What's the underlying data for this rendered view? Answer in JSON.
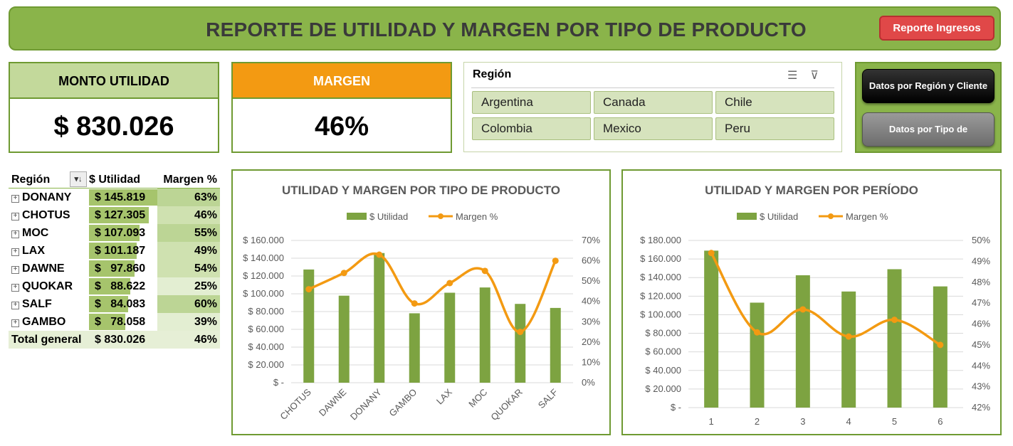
{
  "header": {
    "title": "REPORTE DE UTILIDAD Y MARGEN POR TIPO DE PRODUCTO",
    "button_label": "Reporte Ingresos"
  },
  "kpis": {
    "utilidad": {
      "label": "MONTO UTILIDAD",
      "value": "$ 830.026"
    },
    "margen": {
      "label": "MARGEN",
      "value": "46%"
    }
  },
  "slicer": {
    "title": "Región",
    "items": [
      "Argentina",
      "Canada",
      "Chile",
      "Colombia",
      "Mexico",
      "Peru"
    ]
  },
  "nav": {
    "btn1": "Datos por Región y Cliente",
    "btn2": "Datos por Tipo de"
  },
  "pivot": {
    "headers": [
      "Región",
      "$ Utilidad",
      "Margen %"
    ],
    "rows": [
      {
        "label": "DONANY",
        "utilidad": "$ 145.819",
        "margen": "63%",
        "util_value": 145819,
        "margen_value": 63
      },
      {
        "label": "CHOTUS",
        "utilidad": "$ 127.305",
        "margen": "46%",
        "util_value": 127305,
        "margen_value": 46
      },
      {
        "label": "MOC",
        "utilidad": "$ 107.093",
        "margen": "55%",
        "util_value": 107093,
        "margen_value": 55
      },
      {
        "label": "LAX",
        "utilidad": "$ 101.187",
        "margen": "49%",
        "util_value": 101187,
        "margen_value": 49
      },
      {
        "label": "DAWNE",
        "utilidad": "$   97.860",
        "margen": "54%",
        "util_value": 97860,
        "margen_value": 54
      },
      {
        "label": "QUOKAR",
        "utilidad": "$   88.622",
        "margen": "25%",
        "util_value": 88622,
        "margen_value": 25
      },
      {
        "label": "SALF",
        "utilidad": "$   84.083",
        "margen": "60%",
        "util_value": 84083,
        "margen_value": 60
      },
      {
        "label": "GAMBO",
        "utilidad": "$   78.058",
        "margen": "39%",
        "util_value": 78058,
        "margen_value": 39
      }
    ],
    "total": {
      "label": "Total general",
      "utilidad": "$ 830.026",
      "margen": "46%"
    }
  },
  "colors": {
    "bar": "#7da341",
    "line": "#f39a12",
    "accent_green": "#8ab44a",
    "red_button": "#e04848"
  },
  "chart_data": [
    {
      "type": "bar",
      "title": "UTILIDAD Y MARGEN POR TIPO DE PRODUCTO",
      "legend": [
        "$ Utilidad",
        "Margen %"
      ],
      "legend_position": "top",
      "categories": [
        "CHOTUS",
        "DAWNE",
        "DONANY",
        "GAMBO",
        "LAX",
        "MOC",
        "QUOKAR",
        "SALF"
      ],
      "series": [
        {
          "name": "$ Utilidad",
          "type": "bar",
          "axis": "left",
          "values": [
            127305,
            97860,
            145819,
            78058,
            101187,
            107093,
            88622,
            84083
          ]
        },
        {
          "name": "Margen %",
          "type": "line",
          "axis": "right",
          "values": [
            46,
            54,
            63,
            39,
            49,
            55,
            25,
            60
          ]
        }
      ],
      "ylim": [
        0,
        160000
      ],
      "yticks": [
        "$ -",
        "$ 20.000",
        "$ 40.000",
        "$ 60.000",
        "$ 80.000",
        "$ 100.000",
        "$ 120.000",
        "$ 140.000",
        "$ 160.000"
      ],
      "y2lim": [
        0,
        70
      ],
      "y2ticks": [
        "0%",
        "10%",
        "20%",
        "30%",
        "40%",
        "50%",
        "60%",
        "70%"
      ],
      "grid": true
    },
    {
      "type": "bar",
      "title": "UTILIDAD Y MARGEN POR PERÍODO",
      "legend": [
        "$ Utilidad",
        "Margen %"
      ],
      "legend_position": "top",
      "categories": [
        "1",
        "2",
        "3",
        "4",
        "5",
        "6"
      ],
      "series": [
        {
          "name": "$ Utilidad",
          "type": "bar",
          "axis": "left",
          "values": [
            169000,
            113000,
            142500,
            125000,
            149000,
            130500
          ]
        },
        {
          "name": "Margen %",
          "type": "line",
          "axis": "right",
          "values": [
            49.4,
            45.6,
            46.7,
            45.4,
            46.2,
            45.0
          ]
        }
      ],
      "ylim": [
        0,
        180000
      ],
      "yticks": [
        "$ -",
        "$ 20.000",
        "$ 40.000",
        "$ 60.000",
        "$ 80.000",
        "$ 100.000",
        "$ 120.000",
        "$ 140.000",
        "$ 160.000",
        "$ 180.000"
      ],
      "y2lim": [
        42,
        50
      ],
      "y2ticks": [
        "42%",
        "43%",
        "44%",
        "45%",
        "46%",
        "47%",
        "48%",
        "49%",
        "50%"
      ],
      "grid": true
    }
  ]
}
